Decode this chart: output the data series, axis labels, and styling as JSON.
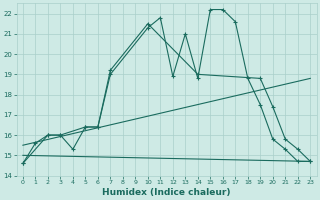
{
  "xlabel": "Humidex (Indice chaleur)",
  "background_color": "#ceeae5",
  "grid_color": "#aacfca",
  "line_color": "#1a6b5e",
  "xlim": [
    -0.5,
    23.5
  ],
  "ylim": [
    14,
    22.5
  ],
  "yticks": [
    14,
    15,
    16,
    17,
    18,
    19,
    20,
    21,
    22
  ],
  "xticks": [
    0,
    1,
    2,
    3,
    4,
    5,
    6,
    7,
    8,
    9,
    10,
    11,
    12,
    13,
    14,
    15,
    16,
    17,
    18,
    19,
    20,
    21,
    22,
    23
  ],
  "line1_x": [
    0,
    1,
    2,
    3,
    4,
    5,
    6,
    7,
    10,
    11,
    12,
    13,
    14,
    15,
    16,
    17,
    18,
    19,
    20,
    21,
    22,
    23
  ],
  "line1_y": [
    14.6,
    15.6,
    16.0,
    16.0,
    15.3,
    16.4,
    16.4,
    19.0,
    21.3,
    21.8,
    18.9,
    21.0,
    18.8,
    22.2,
    22.2,
    21.6,
    18.8,
    17.5,
    15.8,
    15.3,
    14.7,
    14.7
  ],
  "line2_x": [
    0,
    2,
    3,
    5,
    6,
    7,
    10,
    14,
    19,
    20,
    21,
    22,
    23
  ],
  "line2_y": [
    14.6,
    16.0,
    16.0,
    16.4,
    16.4,
    19.2,
    21.5,
    19.0,
    18.8,
    17.4,
    15.8,
    15.3,
    14.7
  ],
  "line3_x": [
    0,
    23
  ],
  "line3_y": [
    15.5,
    18.8
  ],
  "line4_x": [
    0,
    23
  ],
  "line4_y": [
    15.0,
    14.7
  ]
}
